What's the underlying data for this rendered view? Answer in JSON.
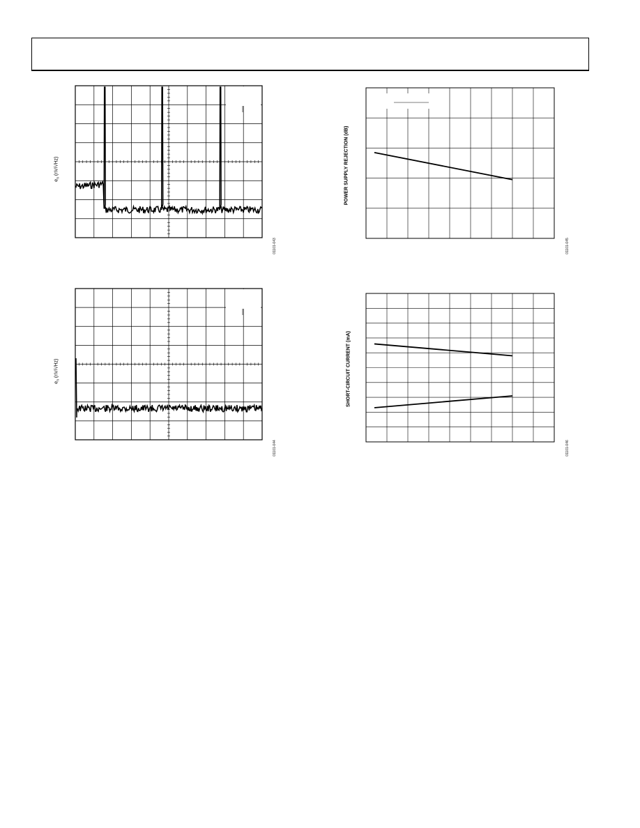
{
  "figures": [
    {
      "id": "noise-left-top",
      "ylabel_main": "e",
      "ylabel_sub": "n",
      "ylabel_rest": " (nV/√Hz)",
      "fig_code": "01101-043",
      "chart_data": {
        "type": "line",
        "title": "",
        "xlabel": "",
        "ylabel": "en (nV/√Hz)",
        "grid": true,
        "series": [
          {
            "values_norm_desc": "noise spectrum with three spikes"
          }
        ]
      }
    },
    {
      "id": "psrr-right-top",
      "ylabel": "POWER SUPPLY REJECTION (dB)",
      "fig_code": "01101-045",
      "chart_data": {
        "type": "line",
        "title": "",
        "xlabel": "",
        "ylabel": "POWER SUPPLY REJECTION (dB)",
        "grid": true,
        "series": [
          {
            "x": [
              0.4,
              7.0
            ],
            "y": [
              2.85,
              1.95
            ]
          }
        ]
      }
    },
    {
      "id": "noise-left-bottom",
      "ylabel_main": "e",
      "ylabel_sub": "n",
      "ylabel_rest": " (nV/√Hz)",
      "fig_code": "01101-044",
      "chart_data": {
        "type": "line",
        "title": "",
        "xlabel": "",
        "ylabel": "en (nV/√Hz)",
        "grid": true,
        "series": [
          {
            "values_norm_desc": "flat noise spectrum"
          }
        ]
      }
    },
    {
      "id": "isc-right-bottom",
      "ylabel": "SHORT-CIRCUIT CURRENT (mA)",
      "fig_code": "01101-046",
      "chart_data": {
        "type": "line",
        "title": "",
        "xlabel": "",
        "ylabel": "SHORT-CIRCUIT CURRENT (mA)",
        "grid": true,
        "series": [
          {
            "x": [
              0.4,
              7.0
            ],
            "y": [
              6.6,
              5.8
            ]
          },
          {
            "x": [
              0.4,
              7.0
            ],
            "y": [
              2.3,
              3.1
            ]
          }
        ]
      }
    }
  ]
}
